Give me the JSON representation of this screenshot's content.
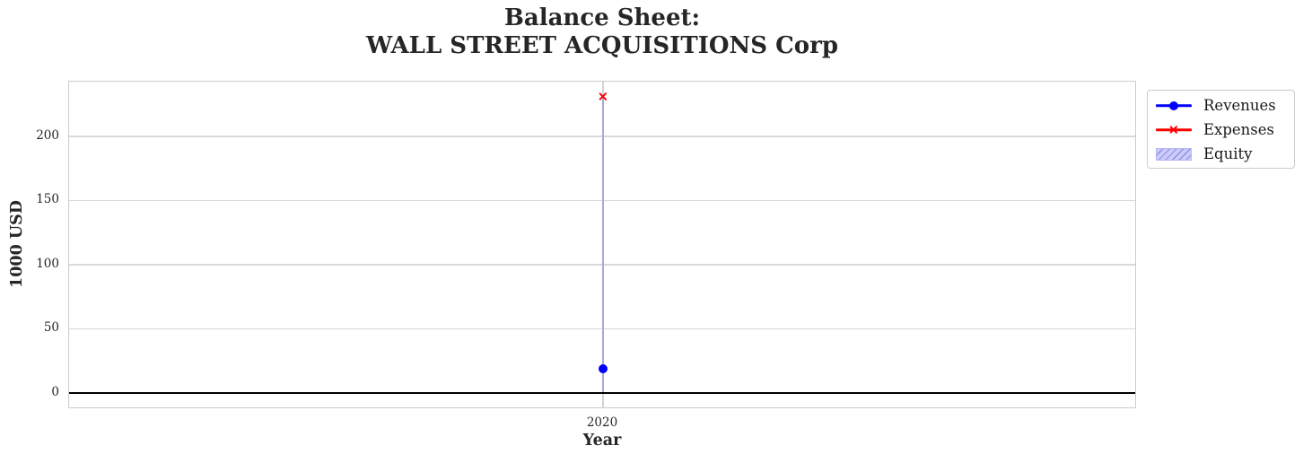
{
  "chart_data": {
    "type": "line",
    "title": "Balance Sheet:\nWALL STREET ACQUISITIONS Corp",
    "xlabel": "Year",
    "ylabel": "1000 USD",
    "x": [
      2020
    ],
    "xticks": [
      "2020"
    ],
    "yticks": [
      0,
      50,
      100,
      150,
      200
    ],
    "ylim": [
      -12.6,
      242.6
    ],
    "grid": true,
    "zero_line_y": 0,
    "legend_position": "outside-top-right",
    "series": [
      {
        "name": "Revenues",
        "kind": "line",
        "marker": "circle",
        "color": "#0000ff",
        "values": [
          19
        ]
      },
      {
        "name": "Expenses",
        "kind": "line",
        "marker": "x",
        "color": "#ff0000",
        "values": [
          231
        ]
      },
      {
        "name": "Equity",
        "kind": "bar",
        "color": "#ccccff",
        "edge_color": "#8f8fe0",
        "hatch": "//",
        "values": [
          231
        ]
      }
    ],
    "colors": {
      "grid": "#d9d9d9",
      "spine": "#cccccc",
      "text": "#262626",
      "zero_line": "#000000"
    }
  }
}
